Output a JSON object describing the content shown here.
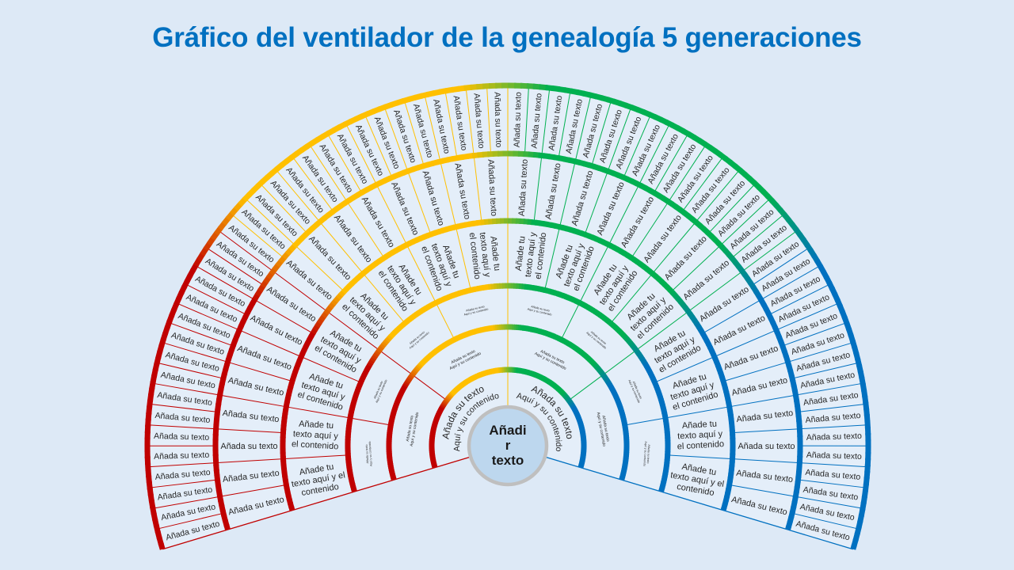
{
  "title": "Gráfico del ventilador de la genealogía 5 generaciones",
  "colors": {
    "background": "#DDE9F6",
    "segment_fill": "#E4EEF9",
    "title": "#0070C0",
    "red": "#C00000",
    "yellow": "#FFC000",
    "green": "#00B050",
    "blue": "#0070C0",
    "center_fill": "#BDD7EE",
    "center_stroke": "#BFBFBF",
    "text": "#262626",
    "center_text": "#1A1A1A"
  },
  "center": {
    "label_lines": [
      "Añadi",
      "r",
      "texto"
    ]
  },
  "rings": [
    {
      "segments": [
        {
          "lines": [
            "Añada su texto",
            "Aquí y su contenido"
          ]
        },
        {
          "lines": [
            "Añada su texto",
            "Aquí y su contenido"
          ]
        }
      ]
    },
    {
      "segments": [
        {
          "lines": [
            "Añada su texto",
            "Aquí y su contenido"
          ]
        },
        {
          "lines": [
            "Añada su texto",
            "Aquí y su contenido"
          ]
        },
        {
          "lines": [
            "Añada su texto",
            "Aquí y su contenido"
          ]
        },
        {
          "lines": [
            "Añada su texto",
            "Aquí y su contenido"
          ]
        }
      ]
    },
    {
      "segments": [
        {
          "lines": [
            "Añada su texto",
            "Aquí y su contenido"
          ]
        },
        {
          "lines": [
            "Añada su texto",
            "Aquí y su contenido"
          ]
        },
        {
          "lines": [
            "Añada su texto",
            "Aquí y su contenido"
          ]
        },
        {
          "lines": [
            "Añada su texto",
            "Aquí y su contenido"
          ]
        },
        {
          "lines": [
            "Añada su texto",
            "Aquí y su contenido"
          ]
        },
        {
          "lines": [
            "Añada su texto",
            "Aquí y su contenido"
          ]
        },
        {
          "lines": [
            "Añada su texto",
            "Aquí y su contenido"
          ]
        },
        {
          "lines": [
            "Añada su texto",
            "Aquí y su contenido"
          ]
        }
      ]
    },
    {
      "segments": [
        {
          "lines": [
            "Añade tu",
            "texto aquí y el",
            "contenido"
          ]
        },
        {
          "lines": [
            "Añade tu",
            "texto aquí y",
            "el contenido"
          ]
        },
        {
          "lines": [
            "Añade tu",
            "texto aquí y",
            "el contenido"
          ]
        },
        {
          "lines": [
            "Añade tu",
            "texto aquí y",
            "el contenido"
          ]
        },
        {
          "lines": [
            "Añade tu",
            "texto aquí y",
            "el contenido"
          ]
        },
        {
          "lines": [
            "Añade tu",
            "texto aquí y",
            "el contenido"
          ]
        },
        {
          "lines": [
            "Añade tu",
            "texto aquí y",
            "el contenido"
          ]
        },
        {
          "lines": [
            "Añade tu",
            "texto aquí y",
            "el contenido"
          ]
        },
        {
          "lines": [
            "Añade tu",
            "texto aquí y",
            "el contenido"
          ]
        },
        {
          "lines": [
            "Añade tu",
            "texto aquí y",
            "el contenido"
          ]
        },
        {
          "lines": [
            "Añade tu",
            "texto aquí y",
            "el contenido"
          ]
        },
        {
          "lines": [
            "Añade tu",
            "texto aquí y",
            "el contenido"
          ]
        },
        {
          "lines": [
            "Añade tu",
            "texto aquí y",
            "el contenido"
          ]
        },
        {
          "lines": [
            "Añade tu",
            "texto aquí y",
            "el contenido"
          ]
        },
        {
          "lines": [
            "Añade tu",
            "texto aquí y",
            "el contenido"
          ]
        },
        {
          "lines": [
            "Añade tu",
            "texto aquí y el",
            "contenido"
          ]
        }
      ]
    },
    {
      "segments": [
        {
          "lines": [
            "Añada su texto"
          ]
        },
        {
          "lines": [
            "Añada su texto"
          ]
        },
        {
          "lines": [
            "Añada su texto"
          ]
        },
        {
          "lines": [
            "Añada su texto"
          ]
        },
        {
          "lines": [
            "Añada su texto"
          ]
        },
        {
          "lines": [
            "Añada su texto"
          ]
        },
        {
          "lines": [
            "Añada su texto"
          ]
        },
        {
          "lines": [
            "Añada su texto"
          ]
        },
        {
          "lines": [
            "Añada su texto"
          ]
        },
        {
          "lines": [
            "Añada su texto"
          ]
        },
        {
          "lines": [
            "Añada su texto"
          ]
        },
        {
          "lines": [
            "Añada su texto"
          ]
        },
        {
          "lines": [
            "Añada su texto"
          ]
        },
        {
          "lines": [
            "Añada su texto"
          ]
        },
        {
          "lines": [
            "Añada su texto"
          ]
        },
        {
          "lines": [
            "Añada su texto"
          ]
        },
        {
          "lines": [
            "Añada su texto"
          ]
        },
        {
          "lines": [
            "Añada su texto"
          ]
        },
        {
          "lines": [
            "Añada su texto"
          ]
        },
        {
          "lines": [
            "Añada su texto"
          ]
        },
        {
          "lines": [
            "Añada su texto"
          ]
        },
        {
          "lines": [
            "Añada su texto"
          ]
        },
        {
          "lines": [
            "Añada su texto"
          ]
        },
        {
          "lines": [
            "Añada su texto"
          ]
        },
        {
          "lines": [
            "Añada su texto"
          ]
        },
        {
          "lines": [
            "Añada su texto"
          ]
        },
        {
          "lines": [
            "Añada su texto"
          ]
        },
        {
          "lines": [
            "Añada su texto"
          ]
        },
        {
          "lines": [
            "Añada su texto"
          ]
        },
        {
          "lines": [
            "Añada su texto"
          ]
        },
        {
          "lines": [
            "Añada su texto"
          ]
        },
        {
          "lines": [
            "Añada su texto"
          ]
        }
      ]
    },
    {
      "segments": [
        {
          "lines": [
            "Añada su texto"
          ]
        },
        {
          "lines": [
            "Añada su texto"
          ]
        },
        {
          "lines": [
            "Añada su texto"
          ]
        },
        {
          "lines": [
            "Añada su texto"
          ]
        },
        {
          "lines": [
            "Añada su texto"
          ]
        },
        {
          "lines": [
            "Añada su texto"
          ]
        },
        {
          "lines": [
            "Añada su texto"
          ]
        },
        {
          "lines": [
            "Añada su texto"
          ]
        },
        {
          "lines": [
            "Añada su texto"
          ]
        },
        {
          "lines": [
            "Añada su texto"
          ]
        },
        {
          "lines": [
            "Añada su texto"
          ]
        },
        {
          "lines": [
            "Añada su texto"
          ]
        },
        {
          "lines": [
            "Añada su texto"
          ]
        },
        {
          "lines": [
            "Añada su texto"
          ]
        },
        {
          "lines": [
            "Añada su texto"
          ]
        },
        {
          "lines": [
            "Añada su texto"
          ]
        },
        {
          "lines": [
            "Añada su texto"
          ]
        },
        {
          "lines": [
            "Añada su texto"
          ]
        },
        {
          "lines": [
            "Añada su texto"
          ]
        },
        {
          "lines": [
            "Añada su texto"
          ]
        },
        {
          "lines": [
            "Añada su texto"
          ]
        },
        {
          "lines": [
            "Añada su texto"
          ]
        },
        {
          "lines": [
            "Añada su texto"
          ]
        },
        {
          "lines": [
            "Añada su texto"
          ]
        },
        {
          "lines": [
            "Añada su texto"
          ]
        },
        {
          "lines": [
            "Añada su texto"
          ]
        },
        {
          "lines": [
            "Añada su texto"
          ]
        },
        {
          "lines": [
            "Añada su texto"
          ]
        },
        {
          "lines": [
            "Añada su texto"
          ]
        },
        {
          "lines": [
            "Añada su texto"
          ]
        },
        {
          "lines": [
            "Añada su texto"
          ]
        },
        {
          "lines": [
            "Añada su texto"
          ]
        },
        {
          "lines": [
            "Añada su texto"
          ]
        },
        {
          "lines": [
            "Añada su texto"
          ]
        },
        {
          "lines": [
            "Añada su texto"
          ]
        },
        {
          "lines": [
            "Añada su texto"
          ]
        },
        {
          "lines": [
            "Añada su texto"
          ]
        },
        {
          "lines": [
            "Añada su texto"
          ]
        },
        {
          "lines": [
            "Añada su texto"
          ]
        },
        {
          "lines": [
            "Añada su texto"
          ]
        },
        {
          "lines": [
            "Añada su texto"
          ]
        },
        {
          "lines": [
            "Añada su texto"
          ]
        },
        {
          "lines": [
            "Añada su texto"
          ]
        },
        {
          "lines": [
            "Añada su texto"
          ]
        },
        {
          "lines": [
            "Añada su texto"
          ]
        },
        {
          "lines": [
            "Añada su texto"
          ]
        },
        {
          "lines": [
            "Añada su texto"
          ]
        },
        {
          "lines": [
            "Añada su texto"
          ]
        },
        {
          "lines": [
            "Añada su texto"
          ]
        },
        {
          "lines": [
            "Añada su texto"
          ]
        },
        {
          "lines": [
            "Añada su texto"
          ]
        },
        {
          "lines": [
            "Añada su texto"
          ]
        },
        {
          "lines": [
            "Añada su texto"
          ]
        },
        {
          "lines": [
            "Añada su texto"
          ]
        },
        {
          "lines": [
            "Añada su texto"
          ]
        },
        {
          "lines": [
            "Añada su texto"
          ]
        },
        {
          "lines": [
            "Añada su texto"
          ]
        },
        {
          "lines": [
            "Añada su texto"
          ]
        },
        {
          "lines": [
            "Añada su texto"
          ]
        },
        {
          "lines": [
            "Añada su texto"
          ]
        },
        {
          "lines": [
            "Añada su texto"
          ]
        },
        {
          "lines": [
            "Añada su texto"
          ]
        },
        {
          "lines": [
            "Añada su texto"
          ]
        },
        {
          "lines": [
            "Añada su texto"
          ]
        }
      ]
    }
  ]
}
